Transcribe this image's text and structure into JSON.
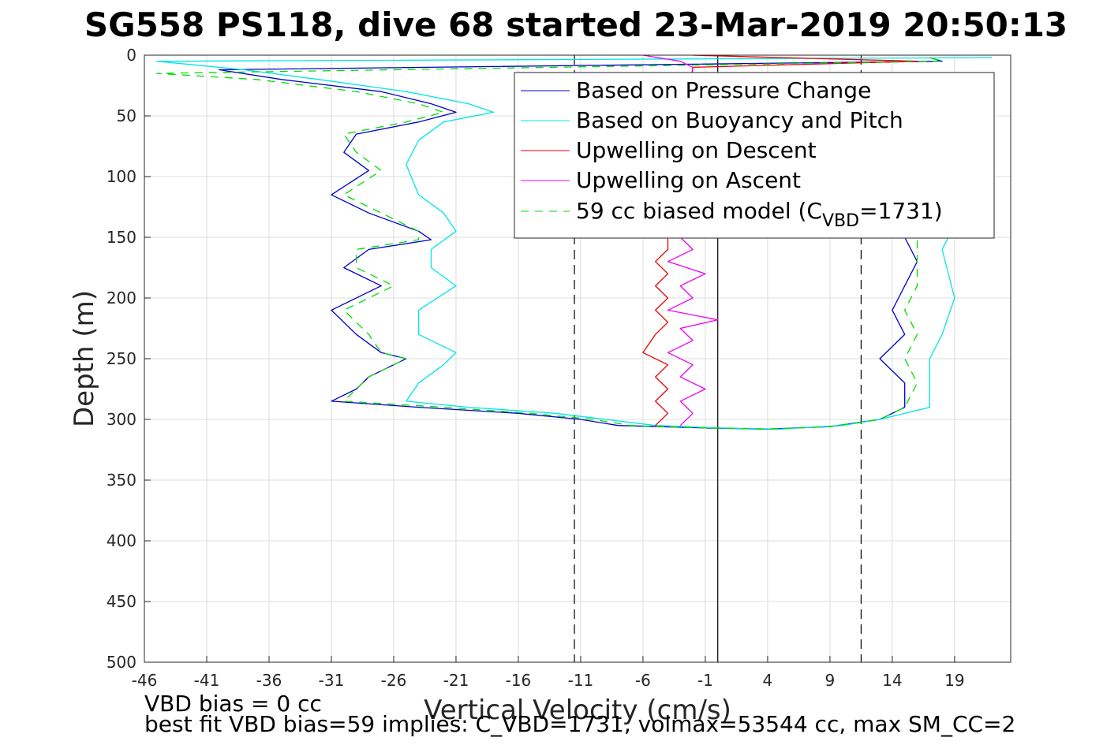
{
  "chart_data": {
    "type": "line",
    "title": "SG558 PS118, dive 68 started 23-Mar-2019 20:50:13",
    "xlabel": "Vertical Velocity (cm/s)",
    "ylabel": "Depth (m)",
    "xlim": [
      -46,
      23.5
    ],
    "ylim": [
      0,
      500
    ],
    "y_reversed": true,
    "x_ticks": [
      -46,
      -41,
      -36,
      -31,
      -26,
      -21,
      -16,
      -11,
      -6,
      -1,
      4,
      9,
      14,
      19
    ],
    "y_ticks": [
      0,
      50,
      100,
      150,
      200,
      250,
      300,
      350,
      400,
      450,
      500
    ],
    "grid": true,
    "legend_position": "top-right",
    "legend": {
      "pressure": "Based on Pressure Change",
      "buoyancy": "Based on Buoyancy and Pitch",
      "up_descent": "Upwelling on Descent",
      "up_ascent": "Upwelling on Ascent",
      "model_prefix": "59 cc biased model (C",
      "model_sub": "VBD",
      "model_suffix": "=1731)"
    },
    "reference_lines": [
      {
        "x": -11.5,
        "style": "dashed"
      },
      {
        "x": 0,
        "style": "solid"
      },
      {
        "x": 11.5,
        "style": "dashed"
      }
    ],
    "series": [
      {
        "key": "pressure",
        "color": "#0000cc",
        "style": "solid",
        "points": [
          [
            17,
            2
          ],
          [
            18,
            5
          ],
          [
            -40,
            12
          ],
          [
            -35,
            20
          ],
          [
            -27,
            30
          ],
          [
            -23,
            40
          ],
          [
            -21,
            47
          ],
          [
            -24,
            55
          ],
          [
            -29,
            65
          ],
          [
            -30,
            80
          ],
          [
            -28,
            95
          ],
          [
            -31,
            115
          ],
          [
            -28,
            130
          ],
          [
            -24,
            145
          ],
          [
            -23,
            152
          ],
          [
            -28,
            160
          ],
          [
            -30,
            175
          ],
          [
            -27,
            190
          ],
          [
            -31,
            210
          ],
          [
            -29,
            230
          ],
          [
            -27,
            245
          ],
          [
            -25,
            250
          ],
          [
            -28,
            265
          ],
          [
            -29,
            275
          ],
          [
            -31,
            285
          ],
          [
            -24,
            290
          ],
          [
            -16,
            295
          ],
          [
            -11,
            300
          ],
          [
            -8,
            305
          ],
          [
            -1,
            307
          ],
          [
            4,
            308
          ],
          [
            9,
            306
          ],
          [
            13,
            300
          ],
          [
            15,
            290
          ],
          [
            15,
            270
          ],
          [
            13,
            250
          ],
          [
            15,
            230
          ],
          [
            14,
            210
          ],
          [
            15,
            190
          ],
          [
            16,
            170
          ],
          [
            15,
            150
          ],
          [
            17,
            110
          ],
          [
            17,
            40
          ],
          [
            17,
            15
          ]
        ]
      },
      {
        "key": "buoyancy",
        "color": "#00e5e5",
        "style": "solid",
        "points": [
          [
            22,
            2
          ],
          [
            -45,
            5
          ],
          [
            -38,
            12
          ],
          [
            -32,
            20
          ],
          [
            -25,
            30
          ],
          [
            -20,
            40
          ],
          [
            -18,
            47
          ],
          [
            -22,
            55
          ],
          [
            -24,
            70
          ],
          [
            -25,
            90
          ],
          [
            -24,
            115
          ],
          [
            -22,
            130
          ],
          [
            -21,
            145
          ],
          [
            -23,
            160
          ],
          [
            -23,
            175
          ],
          [
            -21,
            190
          ],
          [
            -24,
            210
          ],
          [
            -24,
            230
          ],
          [
            -21,
            245
          ],
          [
            -22,
            255
          ],
          [
            -24,
            270
          ],
          [
            -25,
            285
          ],
          [
            -20,
            290
          ],
          [
            -13,
            295
          ],
          [
            -9,
            300
          ],
          [
            -5,
            305
          ],
          [
            0,
            307
          ],
          [
            5,
            308
          ],
          [
            10,
            305
          ],
          [
            13,
            300
          ],
          [
            17,
            290
          ],
          [
            17,
            265
          ],
          [
            17,
            250
          ],
          [
            18,
            230
          ],
          [
            19,
            200
          ],
          [
            18,
            160
          ],
          [
            19,
            140
          ],
          [
            21,
            110
          ],
          [
            22,
            60
          ],
          [
            22,
            15
          ]
        ]
      },
      {
        "key": "up_descent",
        "color": "#ee0000",
        "style": "solid",
        "points": [
          [
            -2,
            0
          ],
          [
            16,
            5
          ],
          [
            -2,
            10
          ],
          [
            -4,
            150
          ],
          [
            -4,
            160
          ],
          [
            -5,
            170
          ],
          [
            -4,
            180
          ],
          [
            -5,
            190
          ],
          [
            -4,
            200
          ],
          [
            -5,
            210
          ],
          [
            -4,
            220
          ],
          [
            -5,
            230
          ],
          [
            -6,
            245
          ],
          [
            -4,
            255
          ],
          [
            -5,
            265
          ],
          [
            -4,
            275
          ],
          [
            -5,
            285
          ],
          [
            -4,
            295
          ],
          [
            -5,
            305
          ]
        ]
      },
      {
        "key": "up_ascent",
        "color": "#ee00ee",
        "style": "solid",
        "points": [
          [
            -6,
            0
          ],
          [
            -3,
            5
          ],
          [
            -2,
            10
          ],
          [
            -3,
            150
          ],
          [
            -2,
            160
          ],
          [
            -4,
            170
          ],
          [
            -1,
            180
          ],
          [
            -3,
            190
          ],
          [
            -2,
            200
          ],
          [
            -4,
            210
          ],
          [
            0,
            218
          ],
          [
            -3,
            225
          ],
          [
            -2,
            235
          ],
          [
            -4,
            245
          ],
          [
            -2,
            255
          ],
          [
            -3,
            265
          ],
          [
            -1,
            275
          ],
          [
            -3,
            285
          ],
          [
            -2,
            295
          ],
          [
            -3,
            305
          ]
        ]
      },
      {
        "key": "model",
        "color": "#00dd00",
        "style": "dashed",
        "points": [
          [
            17,
            2
          ],
          [
            18,
            5
          ],
          [
            -45,
            15
          ],
          [
            -37,
            20
          ],
          [
            -29,
            30
          ],
          [
            -24,
            40
          ],
          [
            -22,
            47
          ],
          [
            -25,
            55
          ],
          [
            -30,
            65
          ],
          [
            -29,
            80
          ],
          [
            -27,
            95
          ],
          [
            -30,
            115
          ],
          [
            -27,
            130
          ],
          [
            -24,
            145
          ],
          [
            -24,
            152
          ],
          [
            -29,
            160
          ],
          [
            -29,
            175
          ],
          [
            -26,
            190
          ],
          [
            -30,
            210
          ],
          [
            -28,
            230
          ],
          [
            -27,
            245
          ],
          [
            -25,
            250
          ],
          [
            -28,
            265
          ],
          [
            -29,
            275
          ],
          [
            -30,
            285
          ],
          [
            -22,
            290
          ],
          [
            -15,
            295
          ],
          [
            -10,
            300
          ],
          [
            -7,
            305
          ],
          [
            -1,
            307
          ],
          [
            4,
            308
          ],
          [
            9,
            306
          ],
          [
            13,
            300
          ],
          [
            15,
            290
          ],
          [
            16,
            270
          ],
          [
            15,
            250
          ],
          [
            16,
            230
          ],
          [
            15,
            210
          ],
          [
            16,
            190
          ],
          [
            16,
            170
          ],
          [
            16,
            150
          ],
          [
            17,
            110
          ],
          [
            17,
            40
          ],
          [
            17,
            15
          ]
        ]
      }
    ],
    "footer": {
      "line1": "VBD bias = 0 cc",
      "line2": "best fit VBD bias=59 implies: C_VBD=1731, volmax=53544 cc, max SM_CC=2"
    }
  },
  "colors": {
    "axis": "#262626",
    "grid": "#dcdcdc",
    "ref_line": "#000000"
  }
}
